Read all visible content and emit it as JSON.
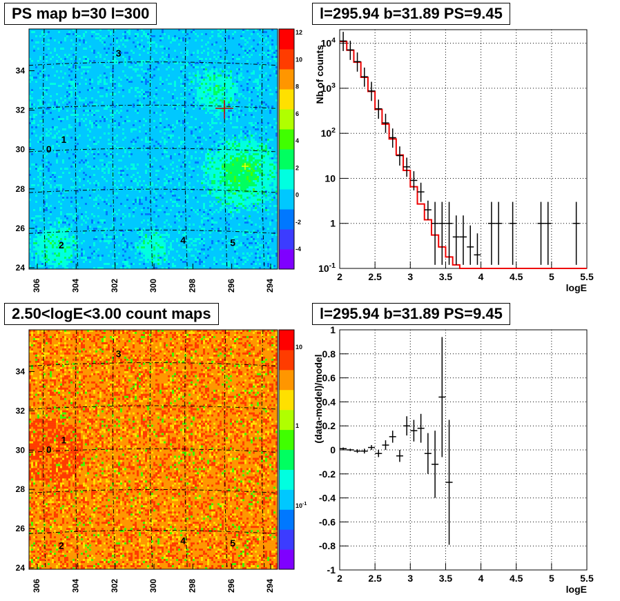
{
  "panels": {
    "tl_title": "PS map b=30 l=300",
    "tr_title": "l=295.94 b=31.89 PS=9.45",
    "bl_title": "2.50<logE<3.00 count maps",
    "br_title": "l=295.94 b=31.89 PS=9.45"
  },
  "chart_data": [
    {
      "type": "heatmap",
      "title": "PS map b=30 l=300",
      "x_ticks": [
        "306",
        "304",
        "302",
        "300",
        "298",
        "296",
        "294"
      ],
      "y_ticks": [
        "24",
        "26",
        "28",
        "30",
        "32",
        "34"
      ],
      "colorbar_ticks": [
        "12",
        "10",
        "8",
        "6",
        "4",
        "2",
        "0",
        "-2",
        "-4"
      ],
      "colorbar_range": [
        -5,
        12
      ],
      "source_labels": [
        "0",
        "1",
        "2",
        "3",
        "4",
        "5"
      ],
      "colors": [
        "#7f00ff",
        "#3c3cff",
        "#0078ff",
        "#00c8ff",
        "#00ffe0",
        "#00ff60",
        "#40ff00",
        "#b0ff00",
        "#ffe000",
        "#ff9600",
        "#ff3c00",
        "#ff0000"
      ]
    },
    {
      "type": "line",
      "title": "l=295.94 b=31.89 PS=9.45",
      "xlabel": "logE",
      "ylabel": "Nb of counts",
      "y_log": true,
      "xlim": [
        2,
        5.5
      ],
      "ylim": [
        0.1,
        20000
      ],
      "x_ticks": [
        "2",
        "2.5",
        "3",
        "3.5",
        "4",
        "4.5",
        "5",
        "5.5"
      ],
      "y_ticks": [
        "10^-1",
        "1",
        "10",
        "10^2",
        "10^3",
        "10^4"
      ],
      "grid": true,
      "model_steps": {
        "edges": [
          2.0,
          2.1,
          2.2,
          2.3,
          2.4,
          2.5,
          2.6,
          2.7,
          2.8,
          2.9,
          3.0,
          3.1,
          3.2,
          3.3,
          3.4,
          3.5,
          3.6,
          3.7,
          3.8,
          3.9,
          4.0,
          5.5
        ],
        "values": [
          11000,
          7000,
          3800,
          1750,
          850,
          340,
          160,
          75,
          33,
          15,
          6.5,
          2.7,
          1.2,
          0.55,
          0.3,
          0.18,
          0.12,
          0.1,
          0.1,
          0.1,
          0.1
        ]
      },
      "data_points": {
        "x": [
          2.05,
          2.15,
          2.25,
          2.35,
          2.45,
          2.55,
          2.65,
          2.75,
          2.85,
          2.95,
          3.05,
          3.15,
          3.25,
          3.35,
          3.45,
          3.55,
          3.65,
          3.75,
          3.85,
          3.95,
          4.05,
          4.15,
          4.25,
          4.45,
          4.85,
          4.95,
          5.35
        ],
        "y": [
          11200,
          7100,
          3900,
          1800,
          870,
          350,
          170,
          80,
          32,
          18,
          9,
          5,
          2,
          1,
          1,
          1,
          0.5,
          0.5,
          0.3,
          0.2,
          0.1,
          1,
          1,
          1,
          1,
          1,
          1
        ]
      }
    },
    {
      "type": "heatmap",
      "title": "2.50<logE<3.00 count maps",
      "x_ticks": [
        "306",
        "304",
        "302",
        "300",
        "298",
        "296",
        "294"
      ],
      "y_ticks": [
        "24",
        "26",
        "28",
        "30",
        "32",
        "34"
      ],
      "colorbar_ticks": [
        "10",
        "1",
        "10^-1"
      ],
      "colorbar_log": true,
      "source_labels": [
        "0",
        "1",
        "2",
        "3",
        "4",
        "5"
      ],
      "colors": [
        "#7f00ff",
        "#3c3cff",
        "#0078ff",
        "#00c8ff",
        "#00ffe0",
        "#00ff60",
        "#40ff00",
        "#b0ff00",
        "#ffe000",
        "#ff9600",
        "#ff3c00",
        "#ff0000"
      ]
    },
    {
      "type": "scatter",
      "title": "l=295.94 b=31.89 PS=9.45",
      "xlabel": "logE",
      "ylabel": "(data-model)/model",
      "xlim": [
        2,
        5.5
      ],
      "ylim": [
        -1,
        1
      ],
      "x_ticks": [
        "2",
        "2.5",
        "3",
        "3.5",
        "4",
        "4.5",
        "5",
        "5.5"
      ],
      "y_ticks": [
        "-1",
        "-0.8",
        "-0.6",
        "-0.4",
        "-0.2",
        "0",
        "0.2",
        "0.4",
        "0.6",
        "0.8",
        "1"
      ],
      "grid": true,
      "points": {
        "x": [
          2.05,
          2.15,
          2.25,
          2.35,
          2.45,
          2.55,
          2.65,
          2.75,
          2.85,
          2.95,
          3.05,
          3.15,
          3.25,
          3.35,
          3.45,
          3.55
        ],
        "y": [
          0.01,
          0.0,
          -0.01,
          -0.01,
          0.02,
          -0.03,
          0.04,
          0.11,
          -0.05,
          0.2,
          0.16,
          0.18,
          -0.03,
          -0.12,
          0.44,
          -0.27
        ],
        "err": [
          0.01,
          0.01,
          0.015,
          0.02,
          0.02,
          0.03,
          0.04,
          0.05,
          0.05,
          0.08,
          0.09,
          0.12,
          0.17,
          0.28,
          0.5,
          0.52
        ]
      }
    }
  ]
}
